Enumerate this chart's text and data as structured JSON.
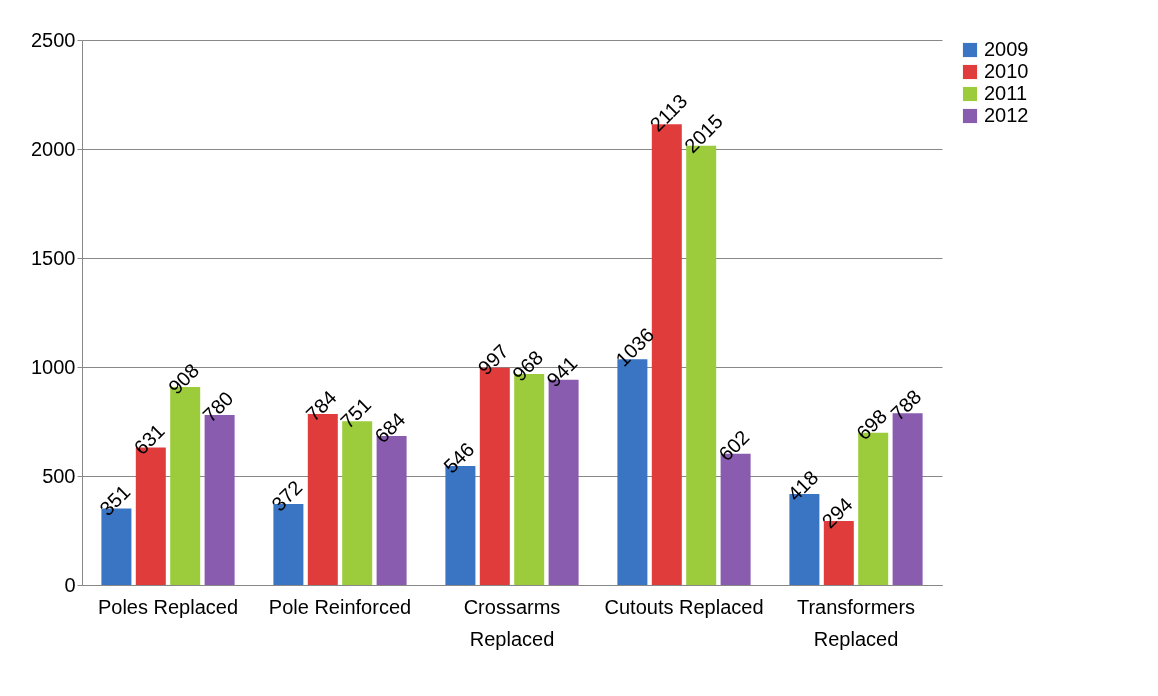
{
  "chart_data": {
    "type": "bar",
    "categories": [
      "Poles Replaced",
      "Pole Reinforced",
      "Crossarms Replaced",
      "Cutouts Replaced",
      "Transformers Replaced"
    ],
    "series": [
      {
        "name": "2009",
        "color": "#3a75c4",
        "values": [
          351,
          372,
          546,
          1036,
          418
        ]
      },
      {
        "name": "2010",
        "color": "#e03c3c",
        "values": [
          631,
          784,
          997,
          2113,
          294
        ]
      },
      {
        "name": "2011",
        "color": "#9ccc3c",
        "values": [
          908,
          751,
          968,
          2015,
          698
        ]
      },
      {
        "name": "2012",
        "color": "#8a5cb0",
        "values": [
          780,
          684,
          941,
          602,
          788
        ]
      }
    ],
    "ylim": [
      0,
      2500
    ],
    "yticks": [
      0,
      500,
      1000,
      1500,
      2000,
      2500
    ],
    "grid": "y",
    "legend": "right",
    "data_labels": true
  }
}
